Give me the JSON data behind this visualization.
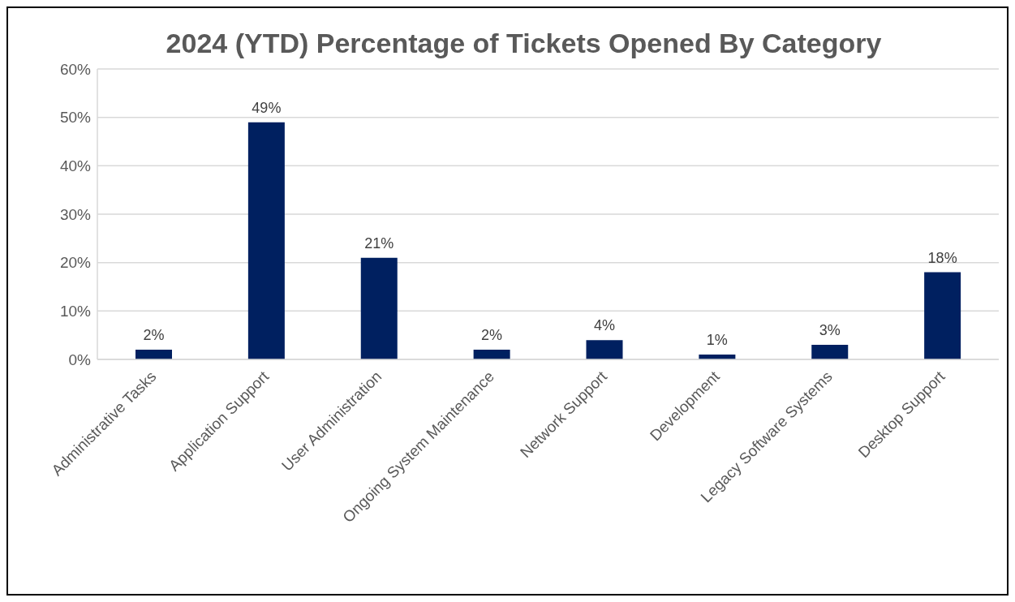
{
  "chart_data": {
    "type": "bar",
    "title": "2024 (YTD) Percentage of Tickets Opened By Category",
    "categories": [
      "Administrative Tasks",
      "Application Support",
      "User Administration",
      "Ongoing System Maintenance",
      "Network Support",
      "Development",
      "Legacy Software Systems",
      "Desktop Support"
    ],
    "values": [
      2,
      49,
      21,
      2,
      4,
      1,
      3,
      18
    ],
    "value_labels": [
      "2%",
      "49%",
      "21%",
      "2%",
      "4%",
      "1%",
      "3%",
      "18%"
    ],
    "color": "#002060",
    "ylim": [
      0,
      60
    ],
    "yticks": [
      {
        "value": 0,
        "label": "0%"
      },
      {
        "value": 10,
        "label": "10%"
      },
      {
        "value": 20,
        "label": "20%"
      },
      {
        "value": 30,
        "label": "30%"
      },
      {
        "value": 40,
        "label": "40%"
      },
      {
        "value": 50,
        "label": "50%"
      },
      {
        "value": 60,
        "label": "60%"
      }
    ],
    "grid": "y"
  }
}
